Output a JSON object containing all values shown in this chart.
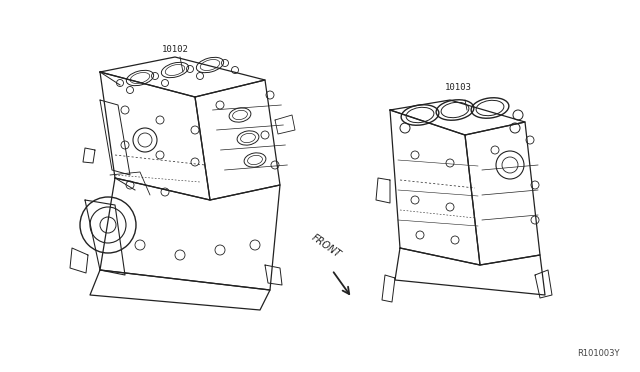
{
  "background_color": "#ffffff",
  "fig_width": 6.4,
  "fig_height": 3.72,
  "dpi": 100,
  "part_label_1": "10102",
  "part_label_2": "10103",
  "front_label": "FRONT",
  "ref_number": "R101003Y",
  "text_color": "#222222",
  "line_color": "#222222",
  "font_size_parts": 6.5,
  "font_size_front": 7,
  "font_size_ref": 6
}
